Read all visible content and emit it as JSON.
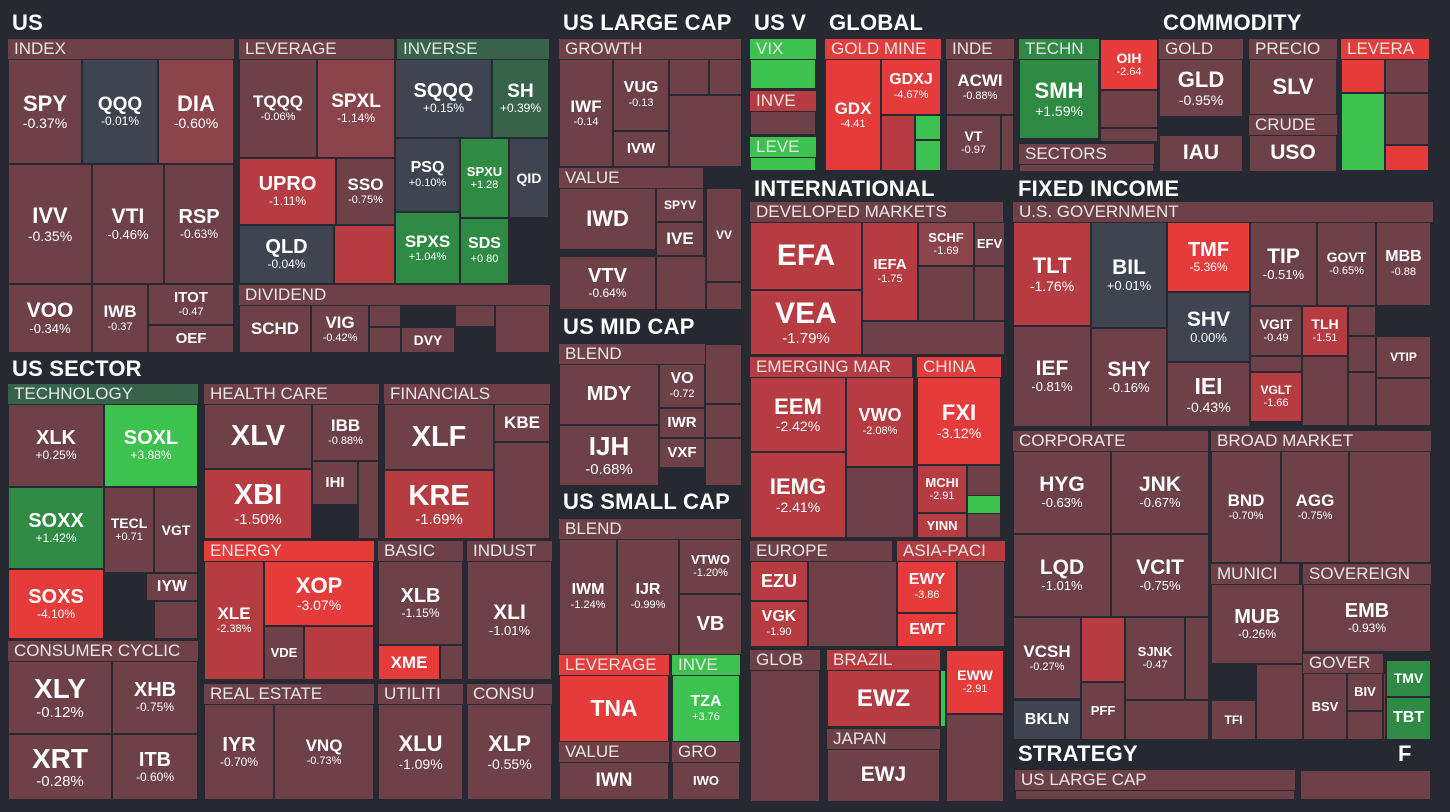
{
  "app": "Stock market heatmap",
  "color_scale": {
    "strong_negative": "#e63b3b",
    "negative": "#b63c42",
    "mild_negative": "#8b444b",
    "slight_negative": "#6e4149",
    "flat": "#3e4450",
    "slight_positive": "#36634a",
    "positive": "#2f8a44",
    "strong_positive": "#3ec24f"
  },
  "sections": [
    {
      "name": "US",
      "groups": [
        {
          "name": "INDEX",
          "tiles": [
            {
              "symbol": "SPY",
              "change": "-0.37%"
            },
            {
              "symbol": "QQQ",
              "change": "-0.01%"
            },
            {
              "symbol": "DIA",
              "change": "-0.60%"
            },
            {
              "symbol": "IVV",
              "change": "-0.35%"
            },
            {
              "symbol": "VTI",
              "change": "-0.46%"
            },
            {
              "symbol": "RSP",
              "change": "-0.63%"
            },
            {
              "symbol": "VOO",
              "change": "-0.34%"
            },
            {
              "symbol": "IWB",
              "change": "-0.37"
            },
            {
              "symbol": "ITOT",
              "change": "-0.47"
            },
            {
              "symbol": "OEF",
              "change": ""
            }
          ]
        },
        {
          "name": "LEVERAGE",
          "tiles": [
            {
              "symbol": "TQQQ",
              "change": "-0.06%"
            },
            {
              "symbol": "SPXL",
              "change": "-1.14%"
            },
            {
              "symbol": "UPRO",
              "change": "-1.11%"
            },
            {
              "symbol": "SSO",
              "change": "-0.75%"
            },
            {
              "symbol": "QLD",
              "change": "-0.04%"
            }
          ]
        },
        {
          "name": "INVERSE",
          "tiles": [
            {
              "symbol": "SQQQ",
              "change": "+0.15%"
            },
            {
              "symbol": "SH",
              "change": "+0.39%"
            },
            {
              "symbol": "PSQ",
              "change": "+0.10%"
            },
            {
              "symbol": "SPXU",
              "change": "+1.28"
            },
            {
              "symbol": "QID",
              "change": ""
            },
            {
              "symbol": "SPXS",
              "change": "+1.04%"
            },
            {
              "symbol": "SDS",
              "change": "+0.80"
            }
          ]
        },
        {
          "name": "DIVIDEND",
          "tiles": [
            {
              "symbol": "SCHD",
              "change": ""
            },
            {
              "symbol": "VIG",
              "change": "-0.42%"
            },
            {
              "symbol": "DVY",
              "change": ""
            }
          ]
        }
      ]
    },
    {
      "name": "US LARGE CAP",
      "groups": [
        {
          "name": "GROWTH",
          "tiles": [
            {
              "symbol": "IWF",
              "change": "-0.14"
            },
            {
              "symbol": "VUG",
              "change": "-0.13"
            },
            {
              "symbol": "IVW",
              "change": ""
            }
          ]
        },
        {
          "name": "VALUE",
          "tiles": [
            {
              "symbol": "IWD",
              "change": ""
            },
            {
              "symbol": "SPYV",
              "change": ""
            },
            {
              "symbol": "IVE",
              "change": ""
            },
            {
              "symbol": "VV",
              "change": ""
            },
            {
              "symbol": "VTV",
              "change": "-0.64%"
            }
          ]
        }
      ]
    },
    {
      "name": "US MID CAP",
      "groups": [
        {
          "name": "BLEND",
          "tiles": [
            {
              "symbol": "MDY",
              "change": ""
            },
            {
              "symbol": "VO",
              "change": "-0.72"
            },
            {
              "symbol": "IWR",
              "change": ""
            },
            {
              "symbol": "IJH",
              "change": "-0.68%"
            },
            {
              "symbol": "VXF",
              "change": ""
            }
          ]
        }
      ]
    },
    {
      "name": "US SMALL CAP",
      "groups": [
        {
          "name": "BLEND",
          "tiles": [
            {
              "symbol": "IWM",
              "change": "-1.24%"
            },
            {
              "symbol": "IJR",
              "change": "-0.99%"
            },
            {
              "symbol": "VTWO",
              "change": "-1.20%"
            },
            {
              "symbol": "VB",
              "change": ""
            }
          ]
        },
        {
          "name": "LEVERAGE",
          "tiles": [
            {
              "symbol": "TNA",
              "change": ""
            }
          ]
        },
        {
          "name": "INVE",
          "tiles": [
            {
              "symbol": "TZA",
              "change": "+3.76"
            }
          ]
        },
        {
          "name": "VALUE",
          "tiles": [
            {
              "symbol": "IWN",
              "change": ""
            }
          ]
        },
        {
          "name": "GRO",
          "tiles": [
            {
              "symbol": "IWO",
              "change": ""
            }
          ]
        }
      ]
    },
    {
      "name": "US V",
      "groups": [
        {
          "name": "VIX",
          "tiles": []
        },
        {
          "name": "INVE",
          "tiles": []
        },
        {
          "name": "LEVE",
          "tiles": []
        }
      ]
    },
    {
      "name": "GLOBAL",
      "groups": [
        {
          "name": "GOLD MINE",
          "tiles": [
            {
              "symbol": "GDX",
              "change": "-4.41"
            },
            {
              "symbol": "GDXJ",
              "change": "-4.67%"
            }
          ]
        },
        {
          "name": "INDE",
          "tiles": [
            {
              "symbol": "ACWI",
              "change": "-0.88%"
            },
            {
              "symbol": "VT",
              "change": "-0.97"
            }
          ]
        },
        {
          "name": "TECHN",
          "tiles": [
            {
              "symbol": "SMH",
              "change": "+1.59%"
            }
          ]
        },
        {
          "name": "",
          "tiles": [
            {
              "symbol": "OIH",
              "change": "-2.64"
            }
          ]
        },
        {
          "name": "SECTORS",
          "tiles": []
        }
      ]
    },
    {
      "name": "COMMODITY",
      "groups": [
        {
          "name": "GOLD",
          "tiles": [
            {
              "symbol": "GLD",
              "change": "-0.95%"
            },
            {
              "symbol": "IAU",
              "change": ""
            }
          ]
        },
        {
          "name": "PRECIO",
          "tiles": [
            {
              "symbol": "SLV",
              "change": ""
            }
          ]
        },
        {
          "name": "CRUDE",
          "tiles": [
            {
              "symbol": "USO",
              "change": ""
            }
          ]
        },
        {
          "name": "LEVERA",
          "tiles": []
        }
      ]
    },
    {
      "name": "INTERNATIONAL",
      "groups": [
        {
          "name": "DEVELOPED MARKETS",
          "tiles": [
            {
              "symbol": "EFA",
              "change": ""
            },
            {
              "symbol": "VEA",
              "change": "-1.79%"
            },
            {
              "symbol": "IEFA",
              "change": "-1.75"
            },
            {
              "symbol": "SCHF",
              "change": "-1.69"
            },
            {
              "symbol": "EFV",
              "change": ""
            }
          ]
        },
        {
          "name": "EMERGING MAR",
          "tiles": [
            {
              "symbol": "EEM",
              "change": "-2.42%"
            },
            {
              "symbol": "VWO",
              "change": "-2.08%"
            },
            {
              "symbol": "IEMG",
              "change": "-2.41%"
            }
          ]
        },
        {
          "name": "CHINA",
          "tiles": [
            {
              "symbol": "FXI",
              "change": "-3.12%"
            },
            {
              "symbol": "MCHI",
              "change": "-2.91"
            },
            {
              "symbol": "YINN",
              "change": ""
            }
          ]
        },
        {
          "name": "EUROPE",
          "tiles": [
            {
              "symbol": "EZU",
              "change": ""
            },
            {
              "symbol": "VGK",
              "change": "-1.90"
            }
          ]
        },
        {
          "name": "ASIA-PACI",
          "tiles": [
            {
              "symbol": "EWY",
              "change": "-3.86"
            },
            {
              "symbol": "EWT",
              "change": ""
            }
          ]
        },
        {
          "name": "GLOB",
          "tiles": []
        },
        {
          "name": "BRAZIL",
          "tiles": [
            {
              "symbol": "EWZ",
              "change": ""
            }
          ]
        },
        {
          "name": "JAPAN",
          "tiles": [
            {
              "symbol": "EWJ",
              "change": ""
            }
          ]
        },
        {
          "name": "",
          "tiles": [
            {
              "symbol": "EWW",
              "change": "-2.91"
            }
          ]
        }
      ]
    },
    {
      "name": "FIXED INCOME",
      "groups": [
        {
          "name": "U.S. GOVERNMENT",
          "tiles": [
            {
              "symbol": "TLT",
              "change": "-1.76%"
            },
            {
              "symbol": "BIL",
              "change": "+0.01%"
            },
            {
              "symbol": "TMF",
              "change": "-5.36%"
            },
            {
              "symbol": "TIP",
              "change": "-0.51%"
            },
            {
              "symbol": "GOVT",
              "change": "-0.65%"
            },
            {
              "symbol": "MBB",
              "change": "-0.88"
            },
            {
              "symbol": "SHV",
              "change": "0.00%"
            },
            {
              "symbol": "VGIT",
              "change": "-0.49"
            },
            {
              "symbol": "TLH",
              "change": "-1.51"
            },
            {
              "symbol": "VTIP",
              "change": ""
            },
            {
              "symbol": "IEF",
              "change": "-0.81%"
            },
            {
              "symbol": "SHY",
              "change": "-0.16%"
            },
            {
              "symbol": "IEI",
              "change": "-0.43%"
            },
            {
              "symbol": "VGLT",
              "change": "-1.66"
            }
          ]
        },
        {
          "name": "CORPORATE",
          "tiles": [
            {
              "symbol": "HYG",
              "change": "-0.63%"
            },
            {
              "symbol": "JNK",
              "change": "-0.67%"
            },
            {
              "symbol": "LQD",
              "change": "-1.01%"
            },
            {
              "symbol": "VCIT",
              "change": "-0.75%"
            },
            {
              "symbol": "VCSH",
              "change": "-0.27%"
            },
            {
              "symbol": "SJNK",
              "change": "-0.47"
            },
            {
              "symbol": "BKLN",
              "change": ""
            },
            {
              "symbol": "PFF",
              "change": ""
            }
          ]
        },
        {
          "name": "BROAD MARKET",
          "tiles": [
            {
              "symbol": "BND",
              "change": "-0.70%"
            },
            {
              "symbol": "AGG",
              "change": "-0.75%"
            }
          ]
        },
        {
          "name": "MUNICI",
          "tiles": [
            {
              "symbol": "MUB",
              "change": "-0.26%"
            },
            {
              "symbol": "TFI",
              "change": ""
            }
          ]
        },
        {
          "name": "SOVEREIGN",
          "tiles": [
            {
              "symbol": "EMB",
              "change": "-0.93%"
            }
          ]
        },
        {
          "name": "GOVER",
          "tiles": [
            {
              "symbol": "BSV",
              "change": ""
            },
            {
              "symbol": "BIV",
              "change": ""
            }
          ]
        },
        {
          "name": "",
          "tiles": [
            {
              "symbol": "TMV",
              "change": ""
            },
            {
              "symbol": "TBT",
              "change": ""
            }
          ]
        }
      ]
    },
    {
      "name": "US SECTOR",
      "groups": [
        {
          "name": "TECHNOLOGY",
          "tiles": [
            {
              "symbol": "XLK",
              "change": "+0.25%"
            },
            {
              "symbol": "SOXL",
              "change": "+3.88%"
            },
            {
              "symbol": "SOXX",
              "change": "+1.42%"
            },
            {
              "symbol": "TECL",
              "change": "+0.71"
            },
            {
              "symbol": "VGT",
              "change": ""
            },
            {
              "symbol": "SOXS",
              "change": "-4.10%"
            },
            {
              "symbol": "IYW",
              "change": ""
            }
          ]
        },
        {
          "name": "HEALTH CARE",
          "tiles": [
            {
              "symbol": "XLV",
              "change": ""
            },
            {
              "symbol": "IBB",
              "change": "-0.88%"
            },
            {
              "symbol": "IHI",
              "change": ""
            },
            {
              "symbol": "XBI",
              "change": "-1.50%"
            }
          ]
        },
        {
          "name": "FINANCIALS",
          "tiles": [
            {
              "symbol": "XLF",
              "change": ""
            },
            {
              "symbol": "KBE",
              "change": ""
            },
            {
              "symbol": "KRE",
              "change": "-1.69%"
            }
          ]
        },
        {
          "name": "ENERGY",
          "tiles": [
            {
              "symbol": "XLE",
              "change": "-2.38%"
            },
            {
              "symbol": "XOP",
              "change": "-3.07%"
            },
            {
              "symbol": "VDE",
              "change": ""
            }
          ]
        },
        {
          "name": "BASIC",
          "tiles": [
            {
              "symbol": "XLB",
              "change": "-1.15%"
            },
            {
              "symbol": "XME",
              "change": ""
            }
          ]
        },
        {
          "name": "INDUST",
          "tiles": [
            {
              "symbol": "XLI",
              "change": "-1.01%"
            }
          ]
        },
        {
          "name": "CONSUMER CYCLIC",
          "tiles": [
            {
              "symbol": "XLY",
              "change": "-0.12%"
            },
            {
              "symbol": "XHB",
              "change": "-0.75%"
            },
            {
              "symbol": "XRT",
              "change": "-0.28%"
            },
            {
              "symbol": "ITB",
              "change": "-0.60%"
            }
          ]
        },
        {
          "name": "REAL ESTATE",
          "tiles": [
            {
              "symbol": "IYR",
              "change": "-0.70%"
            },
            {
              "symbol": "VNQ",
              "change": "-0.73%"
            }
          ]
        },
        {
          "name": "UTILITI",
          "tiles": [
            {
              "symbol": "XLU",
              "change": "-1.09%"
            }
          ]
        },
        {
          "name": "CONSU",
          "tiles": [
            {
              "symbol": "XLP",
              "change": "-0.55%"
            }
          ]
        }
      ]
    },
    {
      "name": "STRATEGY",
      "groups": [
        {
          "name": "US LARGE CAP",
          "tiles": []
        }
      ]
    },
    {
      "name": "F",
      "groups": []
    }
  ],
  "chart_data": {
    "type": "heatmap",
    "title": "",
    "color_meaning": "daily % change: red negative, gray flat, green positive",
    "categories": [
      "US",
      "US LARGE CAP",
      "US MID CAP",
      "US SMALL CAP",
      "US V",
      "GLOBAL",
      "COMMODITY",
      "INTERNATIONAL",
      "FIXED INCOME",
      "US SECTOR",
      "STRATEGY",
      "F"
    ]
  }
}
